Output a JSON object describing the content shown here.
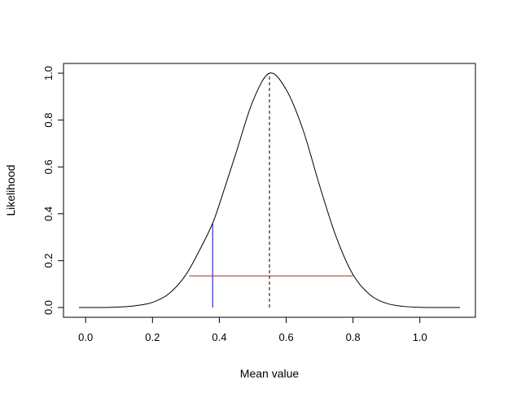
{
  "chart_data": {
    "type": "line",
    "title": "",
    "xlabel": "Mean value",
    "ylabel": "Likelihood",
    "xlim": [
      -0.02,
      1.12
    ],
    "ylim": [
      0.0,
      1.0
    ],
    "grid": false,
    "legend": "none",
    "x_ticks": [
      0.0,
      0.2,
      0.4,
      0.6,
      0.8,
      1.0
    ],
    "x_tick_labels": [
      "0.0",
      "0.2",
      "0.4",
      "0.6",
      "0.8",
      "1.0"
    ],
    "y_ticks": [
      0.0,
      0.2,
      0.4,
      0.6,
      0.8,
      1.0
    ],
    "y_tick_labels": [
      "0.0",
      "0.2",
      "0.4",
      "0.6",
      "0.8",
      "1.0"
    ],
    "series": [
      {
        "color": "#000000",
        "style": "solid",
        "x": [
          -0.02,
          0.0,
          0.05,
          0.1,
          0.15,
          0.2,
          0.25,
          0.3,
          0.35,
          0.38,
          0.4,
          0.45,
          0.5,
          0.55,
          0.6,
          0.65,
          0.7,
          0.75,
          0.8,
          0.85,
          0.9,
          0.95,
          1.0,
          1.05,
          1.12
        ],
        "y": [
          0.0,
          0.0,
          0.0,
          0.002,
          0.008,
          0.022,
          0.06,
          0.14,
          0.27,
          0.36,
          0.44,
          0.66,
          0.88,
          1.0,
          0.93,
          0.76,
          0.52,
          0.3,
          0.14,
          0.055,
          0.018,
          0.005,
          0.001,
          0.0,
          0.0
        ]
      }
    ],
    "annotations": [
      {
        "kind": "vline",
        "x": 0.55,
        "y0": 0.0,
        "y1": 1.0,
        "color": "#000000",
        "style": "dashed"
      },
      {
        "kind": "vline",
        "x": 0.38,
        "y0": 0.0,
        "y1": 0.36,
        "color": "#0000ff",
        "style": "solid"
      },
      {
        "kind": "hline",
        "y": 0.135,
        "x0": 0.31,
        "x1": 0.8,
        "color": "#a52a2a",
        "style": "solid"
      }
    ]
  }
}
